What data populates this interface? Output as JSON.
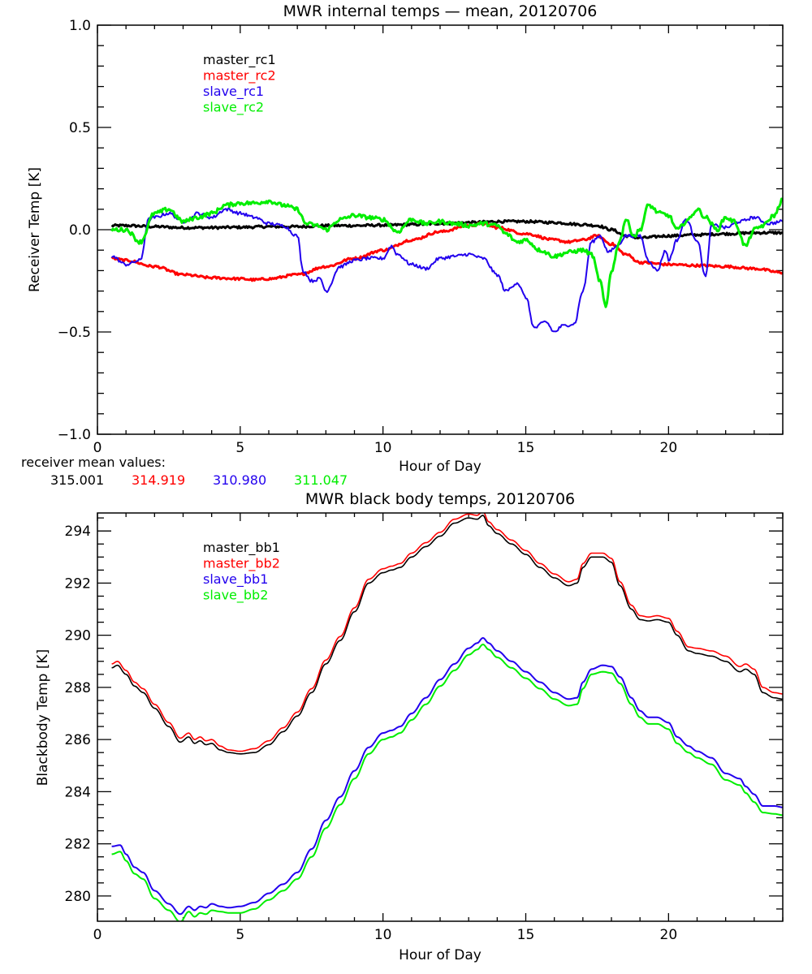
{
  "colors": {
    "black": "#000000",
    "red": "#ff0000",
    "blue": "#2200ee",
    "green": "#00ee00"
  },
  "receiver_mean": {
    "label": "receiver mean values:",
    "values": [
      {
        "text": "315.001",
        "color": "#000000"
      },
      {
        "text": "314.919",
        "color": "#ff0000"
      },
      {
        "text": "310.980",
        "color": "#2200ee"
      },
      {
        "text": "311.047",
        "color": "#00ee00"
      }
    ]
  },
  "chart_data": [
    {
      "type": "line",
      "title": "MWR internal temps — mean, 20120706",
      "xlabel": "Hour of Day",
      "ylabel": "Receiver Temp [K]",
      "xlim": [
        0,
        24
      ],
      "ylim": [
        -1.0,
        1.0
      ],
      "xticks": [
        0,
        5,
        10,
        15,
        20
      ],
      "xtick_labels": [
        "0",
        "5",
        "10",
        "15",
        "20"
      ],
      "yticks": [
        -1.0,
        -0.5,
        0.0,
        0.5,
        1.0
      ],
      "ytick_labels": [
        "−1.0",
        "−0.5",
        "0.0",
        "0.5",
        "1.0"
      ],
      "grid": false,
      "legend_placement": "top-left",
      "series": [
        {
          "name": "master_rc1",
          "color": "#000000",
          "noise": 0.006,
          "x": [
            0.5,
            1,
            2,
            3,
            4,
            5,
            6,
            7,
            8,
            9,
            10,
            11,
            12,
            13,
            14,
            15,
            16,
            17,
            17.5,
            18,
            18.5,
            19,
            20,
            21,
            22,
            23,
            24
          ],
          "y": [
            0.02,
            0.02,
            0.015,
            0.01,
            0.01,
            0.012,
            0.015,
            0.015,
            0.02,
            0.02,
            0.022,
            0.025,
            0.03,
            0.035,
            0.04,
            0.04,
            0.035,
            0.025,
            0.02,
            0.0,
            -0.03,
            -0.04,
            -0.03,
            -0.025,
            -0.02,
            -0.015,
            -0.015
          ]
        },
        {
          "name": "master_rc2",
          "color": "#ff0000",
          "noise": 0.006,
          "x": [
            0.5,
            1,
            2,
            3,
            4,
            5,
            5.5,
            6,
            7,
            8,
            9,
            10,
            11,
            12,
            13,
            13.5,
            14,
            15,
            16,
            16.5,
            17,
            17.5,
            18,
            18.5,
            19,
            20,
            21,
            22,
            23,
            24
          ],
          "y": [
            -0.14,
            -0.15,
            -0.18,
            -0.22,
            -0.235,
            -0.24,
            -0.245,
            -0.24,
            -0.22,
            -0.18,
            -0.14,
            -0.1,
            -0.05,
            -0.01,
            0.02,
            0.03,
            0.01,
            -0.02,
            -0.05,
            -0.06,
            -0.05,
            -0.03,
            -0.07,
            -0.12,
            -0.16,
            -0.17,
            -0.175,
            -0.18,
            -0.19,
            -0.21
          ]
        },
        {
          "name": "slave_rc1",
          "color": "#2200ee",
          "noise": 0.008,
          "x": [
            0.5,
            1,
            1.5,
            1.8,
            2,
            2.5,
            3,
            3.2,
            3.5,
            4,
            4.5,
            5,
            5.5,
            6,
            6.5,
            7,
            7.2,
            7.5,
            7.8,
            8,
            8.5,
            9,
            9.5,
            10,
            10.3,
            10.5,
            11,
            11.5,
            12,
            12.5,
            13,
            13.5,
            14,
            14.3,
            14.7,
            15,
            15.3,
            15.7,
            16,
            16.3,
            16.7,
            17,
            17.3,
            17.6,
            17.9,
            18.2,
            18.5,
            19,
            19.3,
            19.6,
            19.9,
            20,
            20.3,
            20.6,
            21,
            21.3,
            21.5,
            21.7,
            22,
            22.5,
            23,
            23.5,
            24
          ],
          "y": [
            -0.13,
            -0.17,
            -0.15,
            0.05,
            0.06,
            0.08,
            0.04,
            0.05,
            0.08,
            0.06,
            0.1,
            0.08,
            0.06,
            0.03,
            0.02,
            -0.03,
            -0.2,
            -0.25,
            -0.24,
            -0.3,
            -0.18,
            -0.15,
            -0.14,
            -0.14,
            -0.08,
            -0.12,
            -0.17,
            -0.19,
            -0.14,
            -0.13,
            -0.12,
            -0.14,
            -0.22,
            -0.3,
            -0.26,
            -0.33,
            -0.48,
            -0.45,
            -0.5,
            -0.47,
            -0.46,
            -0.3,
            -0.06,
            -0.03,
            -0.11,
            -0.08,
            -0.03,
            -0.03,
            -0.15,
            -0.2,
            -0.1,
            -0.15,
            -0.05,
            0.05,
            -0.05,
            -0.23,
            0.02,
            0.02,
            0.01,
            0.04,
            0.06,
            0.03,
            0.04
          ]
        },
        {
          "name": "slave_rc2",
          "color": "#00ee00",
          "noise": 0.01,
          "x": [
            0.5,
            1,
            1.5,
            2,
            2.5,
            3,
            3.5,
            4,
            4.5,
            5,
            5.5,
            6,
            6.5,
            7,
            7.3,
            7.7,
            8,
            8.5,
            9,
            9.5,
            10,
            10.5,
            11,
            11.5,
            12,
            12.5,
            13,
            13.5,
            14,
            14.3,
            14.7,
            15,
            15.5,
            16,
            16.5,
            17,
            17.3,
            17.6,
            17.8,
            18,
            18.3,
            18.5,
            18.8,
            19,
            19.3,
            19.7,
            20,
            20.3,
            20.7,
            21,
            21.3,
            21.7,
            22,
            22.3,
            22.7,
            23,
            23.3,
            23.7,
            24
          ],
          "y": [
            0.0,
            0.0,
            -0.06,
            0.08,
            0.1,
            0.04,
            0.06,
            0.08,
            0.12,
            0.13,
            0.13,
            0.14,
            0.12,
            0.1,
            0.03,
            0.02,
            0.0,
            0.05,
            0.07,
            0.06,
            0.05,
            -0.01,
            0.05,
            0.03,
            0.04,
            0.03,
            0.02,
            0.03,
            0.02,
            -0.02,
            -0.06,
            -0.05,
            -0.1,
            -0.13,
            -0.11,
            -0.1,
            -0.12,
            -0.25,
            -0.38,
            -0.2,
            -0.05,
            0.05,
            -0.03,
            0.0,
            0.12,
            0.08,
            0.07,
            0.0,
            0.05,
            0.1,
            0.06,
            0.0,
            0.06,
            0.04,
            -0.08,
            0.0,
            0.02,
            0.07,
            0.15
          ]
        }
      ]
    },
    {
      "type": "line",
      "title": "MWR black body temps, 20120706",
      "xlabel": "Hour of Day",
      "ylabel": "Blackbody Temp [K]",
      "xlim": [
        0,
        24
      ],
      "ylim": [
        279.03,
        294.69
      ],
      "xticks": [
        0,
        5,
        10,
        15,
        20
      ],
      "xtick_labels": [
        "0",
        "5",
        "10",
        "15",
        "20"
      ],
      "yticks": [
        280,
        282,
        284,
        286,
        288,
        290,
        292,
        294
      ],
      "ytick_labels": [
        "280",
        "282",
        "284",
        "286",
        "288",
        "290",
        "292",
        "294"
      ],
      "grid": false,
      "legend_placement": "top-left",
      "series": [
        {
          "name": "master_bb1",
          "color": "#000000",
          "x": [
            0.5,
            0.7,
            1,
            1.3,
            1.6,
            2,
            2.5,
            2.9,
            3.2,
            3.4,
            3.6,
            3.8,
            4,
            4.3,
            4.6,
            5,
            5.5,
            6,
            6.5,
            7,
            7.5,
            8,
            8.5,
            9,
            9.5,
            10,
            10.3,
            10.6,
            11,
            11.5,
            12,
            12.5,
            13,
            13.3,
            13.5,
            13.7,
            14,
            14.5,
            15,
            15.5,
            16,
            16.5,
            16.8,
            17,
            17.3,
            17.7,
            18,
            18.3,
            18.7,
            19,
            19.3,
            19.6,
            20,
            20.3,
            20.7,
            21,
            21.5,
            22,
            22.5,
            22.7,
            23,
            23.3,
            23.7,
            24
          ],
          "y": [
            288.75,
            288.85,
            288.5,
            288.05,
            287.8,
            287.2,
            286.5,
            285.9,
            286.1,
            285.85,
            285.95,
            285.8,
            285.85,
            285.6,
            285.5,
            285.45,
            285.5,
            285.8,
            286.3,
            286.9,
            287.8,
            288.9,
            289.8,
            290.9,
            292.0,
            292.4,
            292.5,
            292.6,
            293.0,
            293.4,
            293.8,
            294.3,
            294.5,
            294.45,
            294.6,
            294.2,
            293.9,
            293.5,
            293.1,
            292.6,
            292.2,
            291.9,
            292.0,
            292.6,
            293.0,
            293.0,
            292.8,
            291.9,
            291.0,
            290.6,
            290.55,
            290.6,
            290.5,
            290.0,
            289.4,
            289.3,
            289.2,
            289.0,
            288.6,
            288.7,
            288.5,
            287.8,
            287.6,
            287.55
          ]
        },
        {
          "name": "master_bb2",
          "color": "#ff0000",
          "x": [
            0.5,
            0.7,
            1,
            1.3,
            1.6,
            2,
            2.5,
            2.9,
            3.2,
            3.4,
            3.6,
            3.8,
            4,
            4.3,
            4.6,
            5,
            5.5,
            6,
            6.5,
            7,
            7.5,
            8,
            8.5,
            9,
            9.5,
            10,
            10.3,
            10.6,
            11,
            11.5,
            12,
            12.5,
            13,
            13.3,
            13.5,
            13.7,
            14,
            14.5,
            15,
            15.5,
            16,
            16.5,
            16.8,
            17,
            17.3,
            17.7,
            18,
            18.3,
            18.7,
            19,
            19.3,
            19.6,
            20,
            20.3,
            20.7,
            21,
            21.5,
            22,
            22.5,
            22.7,
            23,
            23.3,
            23.7,
            24
          ],
          "y": [
            288.9,
            289.0,
            288.65,
            288.2,
            287.95,
            287.35,
            286.65,
            286.05,
            286.25,
            286.0,
            286.1,
            285.95,
            286.0,
            285.75,
            285.6,
            285.55,
            285.65,
            285.95,
            286.45,
            287.05,
            287.95,
            289.05,
            289.95,
            291.05,
            292.15,
            292.55,
            292.65,
            292.75,
            293.15,
            293.55,
            293.95,
            294.45,
            294.65,
            294.6,
            294.75,
            294.35,
            294.05,
            293.65,
            293.25,
            292.75,
            292.35,
            292.05,
            292.15,
            292.75,
            293.15,
            293.15,
            292.95,
            292.05,
            291.15,
            290.75,
            290.7,
            290.75,
            290.65,
            290.15,
            289.55,
            289.5,
            289.4,
            289.2,
            288.8,
            288.9,
            288.7,
            288.0,
            287.8,
            287.75
          ]
        },
        {
          "name": "slave_bb1",
          "color": "#2200ee",
          "x": [
            0.5,
            0.8,
            1,
            1.3,
            1.6,
            2,
            2.5,
            2.9,
            3.2,
            3.4,
            3.6,
            3.8,
            4,
            4.3,
            4.6,
            5,
            5.5,
            6,
            6.5,
            7,
            7.5,
            8,
            8.5,
            9,
            9.5,
            10,
            10.3,
            10.6,
            11,
            11.5,
            12,
            12.5,
            13,
            13.3,
            13.5,
            13.7,
            14,
            14.5,
            15,
            15.5,
            16,
            16.5,
            16.8,
            17,
            17.3,
            17.7,
            18,
            18.3,
            18.7,
            19,
            19.3,
            19.6,
            20,
            20.3,
            20.7,
            21,
            21.5,
            22,
            22.5,
            22.7,
            23,
            23.3,
            23.7,
            24
          ],
          "y": [
            281.9,
            281.95,
            281.6,
            281.1,
            280.9,
            280.2,
            279.7,
            279.3,
            279.6,
            279.45,
            279.6,
            279.55,
            279.7,
            279.6,
            279.55,
            279.6,
            279.75,
            280.1,
            280.45,
            280.9,
            281.8,
            282.9,
            283.8,
            284.8,
            285.7,
            286.25,
            286.35,
            286.5,
            287.0,
            287.6,
            288.3,
            288.9,
            289.5,
            289.7,
            289.9,
            289.7,
            289.4,
            289.0,
            288.6,
            288.2,
            287.8,
            287.55,
            287.6,
            288.2,
            288.7,
            288.85,
            288.8,
            288.4,
            287.6,
            287.1,
            286.85,
            286.85,
            286.65,
            286.1,
            285.75,
            285.55,
            285.3,
            284.7,
            284.5,
            284.2,
            283.9,
            283.45,
            283.45,
            283.4
          ]
        },
        {
          "name": "slave_bb2",
          "color": "#00ee00",
          "x": [
            0.5,
            0.8,
            1,
            1.3,
            1.6,
            2,
            2.5,
            2.9,
            3.2,
            3.4,
            3.6,
            3.8,
            4,
            4.3,
            4.6,
            5,
            5.5,
            6,
            6.5,
            7,
            7.5,
            8,
            8.5,
            9,
            9.5,
            10,
            10.3,
            10.6,
            11,
            11.5,
            12,
            12.5,
            13,
            13.3,
            13.5,
            13.7,
            14,
            14.5,
            15,
            15.5,
            16,
            16.5,
            16.8,
            17,
            17.3,
            17.7,
            18,
            18.3,
            18.7,
            19,
            19.3,
            19.6,
            20,
            20.3,
            20.7,
            21,
            21.5,
            22,
            22.5,
            22.7,
            23,
            23.3,
            23.7,
            24
          ],
          "y": [
            281.6,
            281.7,
            281.35,
            280.85,
            280.65,
            279.9,
            279.45,
            279.0,
            279.4,
            279.2,
            279.35,
            279.3,
            279.45,
            279.4,
            279.35,
            279.35,
            279.5,
            279.85,
            280.2,
            280.65,
            281.5,
            282.6,
            283.5,
            284.5,
            285.45,
            286.0,
            286.1,
            286.25,
            286.75,
            287.35,
            288.05,
            288.65,
            289.25,
            289.45,
            289.65,
            289.45,
            289.15,
            288.75,
            288.35,
            287.95,
            287.55,
            287.3,
            287.35,
            287.95,
            288.5,
            288.6,
            288.55,
            288.15,
            287.35,
            286.85,
            286.6,
            286.6,
            286.4,
            285.85,
            285.5,
            285.3,
            285.05,
            284.45,
            284.25,
            283.95,
            283.6,
            283.2,
            283.15,
            283.1
          ]
        }
      ]
    }
  ]
}
